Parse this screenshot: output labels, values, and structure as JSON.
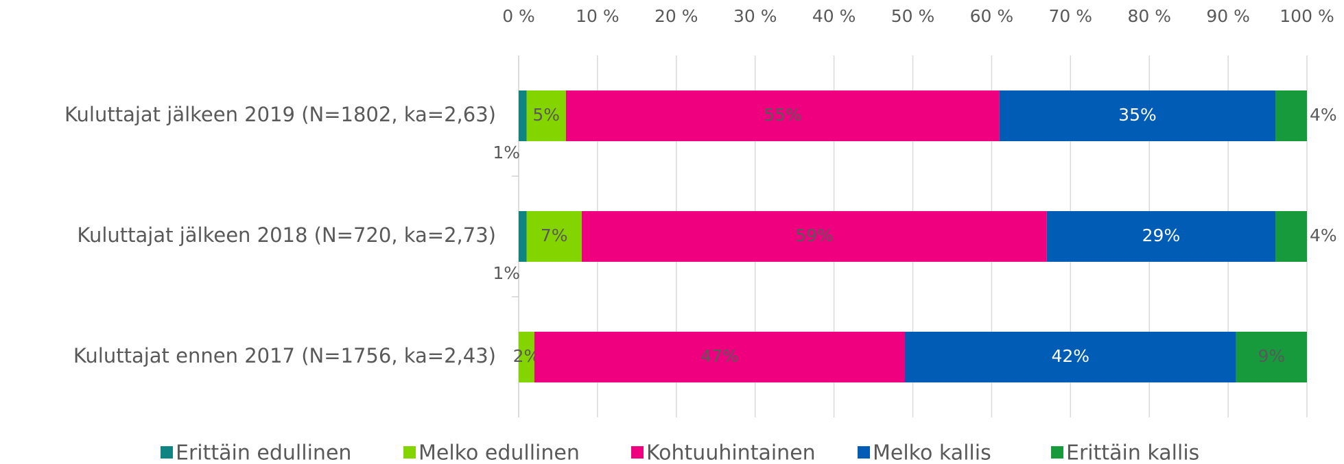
{
  "chart_data": {
    "type": "stacked-bar-horizontal",
    "categories": [
      "Kuluttajat jälkeen 2019 (N=1802, ka=2,63)",
      "Kuluttajat jälkeen 2018 (N=720, ka=2,73)",
      "Kuluttajat ennen 2017 (N=1756, ka=2,43)"
    ],
    "series": [
      {
        "name": "Erittäin edullinen",
        "color": "#0f8481",
        "values": [
          1,
          1,
          0
        ],
        "value_labels": [
          "1%",
          "1%",
          null
        ]
      },
      {
        "name": "Melko edullinen",
        "color": "#84d400",
        "values": [
          5,
          7,
          2
        ],
        "value_labels": [
          "5%",
          "7%",
          "2%"
        ]
      },
      {
        "name": "Kohtuuhintainen",
        "color": "#ee007f",
        "values": [
          55,
          59,
          47
        ],
        "value_labels": [
          "55%",
          "59%",
          "47%"
        ]
      },
      {
        "name": "Melko kallis",
        "color": "#005cb5",
        "values": [
          35,
          29,
          42
        ],
        "value_labels": [
          "35%",
          "29%",
          "42%"
        ]
      },
      {
        "name": "Erittäin kallis",
        "color": "#169a3c",
        "values": [
          4,
          4,
          9
        ],
        "value_labels": [
          "4%",
          "4%",
          "9%"
        ]
      }
    ],
    "xlim": [
      0,
      100
    ],
    "xticks": [
      {
        "value": 0,
        "label": "0 %"
      },
      {
        "value": 10,
        "label": "10 %"
      },
      {
        "value": 20,
        "label": "20 %"
      },
      {
        "value": 30,
        "label": "30 %"
      },
      {
        "value": 40,
        "label": "40 %"
      },
      {
        "value": 50,
        "label": "50 %"
      },
      {
        "value": 60,
        "label": "60 %"
      },
      {
        "value": 70,
        "label": "70 %"
      },
      {
        "value": 80,
        "label": "80 %"
      },
      {
        "value": 90,
        "label": "90 %"
      },
      {
        "value": 100,
        "label": "100 %"
      }
    ],
    "grid": true,
    "legend": "bottom"
  }
}
